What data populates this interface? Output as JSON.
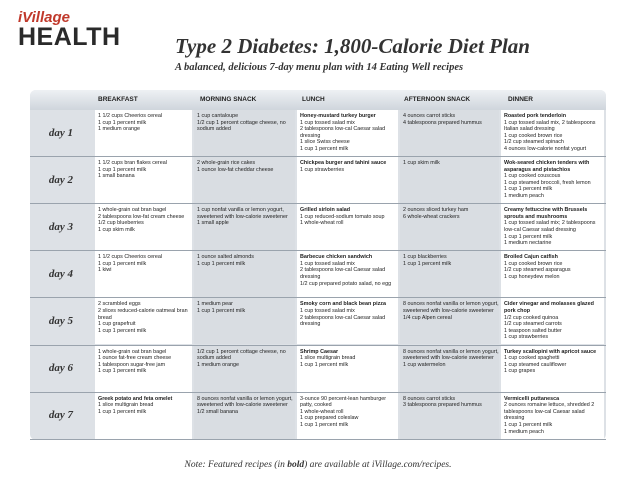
{
  "logo": {
    "top": "iVillage",
    "bottom": "HEALTH"
  },
  "title": "Type 2 Diabetes: 1,800-Calorie Diet Plan",
  "subtitle": "A balanced, delicious 7-day menu plan with 14 Eating Well recipes",
  "columns": [
    "BREAKFAST",
    "MORNING SNACK",
    "LUNCH",
    "AFTERNOON SNACK",
    "DINNER"
  ],
  "days": [
    {
      "label": "day 1",
      "cells": [
        [
          {
            "t": "1 1/2 cups Cheerios cereal"
          },
          {
            "t": "1 cup 1 percent milk"
          },
          {
            "t": "1 medium orange"
          }
        ],
        [
          {
            "t": "1 cup cantaloupe"
          },
          {
            "t": "1/2 cup 1 percent cottage cheese, no sodium added"
          }
        ],
        [
          {
            "t": "Honey-mustard turkey burger",
            "b": true
          },
          {
            "t": "1 cup tossed salad mix"
          },
          {
            "t": "2 tablespoons low-cal Caesar salad dressing"
          },
          {
            "t": "1 slice Swiss cheese"
          },
          {
            "t": "1 cup 1 percent milk"
          }
        ],
        [
          {
            "t": "4 ounces carrot sticks"
          },
          {
            "t": "4 tablespoons prepared hummus"
          }
        ],
        [
          {
            "t": "Roasted pork tenderloin",
            "b": true
          },
          {
            "t": "1 cup tossed salad mix, 2 tablespoons Italian salad dressing"
          },
          {
            "t": "1 cup cooked brown rice"
          },
          {
            "t": "1/2 cup steamed spinach"
          },
          {
            "t": "4 ounces low-calorie nonfat yogurt"
          }
        ]
      ]
    },
    {
      "label": "day 2",
      "cells": [
        [
          {
            "t": "1 1/2 cups bran flakes cereal"
          },
          {
            "t": "1 cup 1 percent milk"
          },
          {
            "t": "1 small banana"
          }
        ],
        [
          {
            "t": "2 whole-grain rice cakes"
          },
          {
            "t": "1 ounce low-fat cheddar cheese"
          }
        ],
        [
          {
            "t": "Chickpea burger and tahini sauce",
            "b": true
          },
          {
            "t": "1 cup strawberries"
          }
        ],
        [
          {
            "t": "1 cup skim milk"
          }
        ],
        [
          {
            "t": "Wok-seared chicken tenders with asparagus and pistachios",
            "b": true
          },
          {
            "t": "1 cup cooked couscous"
          },
          {
            "t": "1 cup steamed broccoli, fresh lemon"
          },
          {
            "t": "1 cup 1 percent milk"
          },
          {
            "t": "1 medium peach"
          }
        ]
      ]
    },
    {
      "label": "day 3",
      "cells": [
        [
          {
            "t": "1 whole-grain oat bran bagel"
          },
          {
            "t": "2 tablespoons low-fat cream cheese"
          },
          {
            "t": "1/2 cup blueberries"
          },
          {
            "t": "1 cup skim milk"
          }
        ],
        [
          {
            "t": "1 cup nonfat vanilla or lemon yogurt, sweetened with low-calorie sweetener"
          },
          {
            "t": "1 small apple"
          }
        ],
        [
          {
            "t": "Grilled sirloin salad",
            "b": true
          },
          {
            "t": "1 cup reduced-sodium tomato soup"
          },
          {
            "t": "1 whole-wheat roll"
          }
        ],
        [
          {
            "t": "2 ounces sliced turkey ham"
          },
          {
            "t": "6 whole-wheat crackers"
          }
        ],
        [
          {
            "t": "Creamy fettuccine with Brussels sprouts and mushrooms",
            "b": true
          },
          {
            "t": "1 cup tossed salad mix; 2 tablespoons low-cal Caesar salad dressing"
          },
          {
            "t": "1 cup 1 percent milk"
          },
          {
            "t": "1 medium nectarine"
          }
        ]
      ]
    },
    {
      "label": "day 4",
      "cells": [
        [
          {
            "t": "1 1/2 cups Cheerios cereal"
          },
          {
            "t": "1 cup 1 percent milk"
          },
          {
            "t": "1 kiwi"
          }
        ],
        [
          {
            "t": "1 ounce salted almonds"
          },
          {
            "t": "1 cup 1 percent milk"
          }
        ],
        [
          {
            "t": "Barbecue chicken sandwich",
            "b": true
          },
          {
            "t": "1 cup tossed salad mix"
          },
          {
            "t": "2 tablespoons low-cal Caesar salad dressing"
          },
          {
            "t": "1/2 cup prepared potato salad, no egg"
          }
        ],
        [
          {
            "t": "1 cup blackberries"
          },
          {
            "t": "1 cup 1 percent milk"
          }
        ],
        [
          {
            "t": "Broiled Cajun catfish",
            "b": true
          },
          {
            "t": "1 cup cooked brown rice"
          },
          {
            "t": "1/2 cup steamed asparagus"
          },
          {
            "t": "1 cup honeydew melon"
          }
        ]
      ]
    },
    {
      "label": "day 5",
      "cells": [
        [
          {
            "t": "2 scrambled eggs"
          },
          {
            "t": "2 slices reduced-calorie oatmeal bran bread"
          },
          {
            "t": "1 cup grapefruit"
          },
          {
            "t": "1 cup 1 percent milk"
          }
        ],
        [
          {
            "t": "1 medium pear"
          },
          {
            "t": "1 cup 1 percent milk"
          }
        ],
        [
          {
            "t": "Smoky corn and black bean pizza",
            "b": true
          },
          {
            "t": "1 cup tossed salad mix"
          },
          {
            "t": "2 tablespoons low-cal Caesar salad dressing"
          }
        ],
        [
          {
            "t": "8 ounces nonfat vanilla or lemon yogurt, sweetened with low-calorie sweetener"
          },
          {
            "t": "1/4 cup Alpen cereal"
          }
        ],
        [
          {
            "t": "Cider vinegar and molasses glazed pork chop",
            "b": true
          },
          {
            "t": "1/2 cup cooked quinoa"
          },
          {
            "t": "1/2 cup steamed carrots"
          },
          {
            "t": "1 teaspoon salted butter"
          },
          {
            "t": "1 cup strawberries"
          }
        ]
      ]
    },
    {
      "label": "day 6",
      "cells": [
        [
          {
            "t": "1 whole-grain oat bran bagel"
          },
          {
            "t": "1 ounce fat-free cream cheese"
          },
          {
            "t": "1 tablespoon sugar-free jam"
          },
          {
            "t": "1 cup 1 percent milk"
          }
        ],
        [
          {
            "t": "1/2 cup 1 percent cottage cheese, no sodium added"
          },
          {
            "t": "1 medium orange"
          }
        ],
        [
          {
            "t": "Shrimp Caesar",
            "b": true
          },
          {
            "t": "1 slice multigrain bread"
          },
          {
            "t": "1 cup 1 percent milk"
          }
        ],
        [
          {
            "t": "8 ounces nonfat vanilla or lemon yogurt, sweetened with low-calorie sweetener"
          },
          {
            "t": "1 cup watermelon"
          }
        ],
        [
          {
            "t": "Turkey scallopini with apricot sauce",
            "b": true
          },
          {
            "t": "1 cup cooked spaghetti"
          },
          {
            "t": "1 cup steamed cauliflower"
          },
          {
            "t": "1 cup grapes"
          }
        ]
      ]
    },
    {
      "label": "day 7",
      "cells": [
        [
          {
            "t": "Greek potato and feta omelet",
            "b": true
          },
          {
            "t": "1 slice multigrain bread"
          },
          {
            "t": "1 cup 1 percent milk"
          }
        ],
        [
          {
            "t": "8 ounces nonfat vanilla or lemon yogurt, sweetened with low-calorie sweetener"
          },
          {
            "t": "1/2 small banana"
          }
        ],
        [
          {
            "t": "3-ounce 90 percent-lean hamburger patty, cooked"
          },
          {
            "t": "1 whole-wheat roll"
          },
          {
            "t": "1 cup prepared coleslaw"
          },
          {
            "t": "1 cup 1 percent milk"
          }
        ],
        [
          {
            "t": "8 ounces carrot sticks"
          },
          {
            "t": "3 tablespoons prepared hummus"
          }
        ],
        [
          {
            "t": "Vermicelli puttanesca",
            "b": true
          },
          {
            "t": "2 ounces romaine lettuce, shredded 2 tablespoons low-cal Caesar salad dressing"
          },
          {
            "t": "1 cup 1 percent milk"
          },
          {
            "t": "1 medium peach"
          }
        ]
      ]
    }
  ],
  "note": {
    "pre": "Note: Featured recipes (in ",
    "bold": "bold",
    "post": ") are available at iVillage.com/recipes."
  }
}
